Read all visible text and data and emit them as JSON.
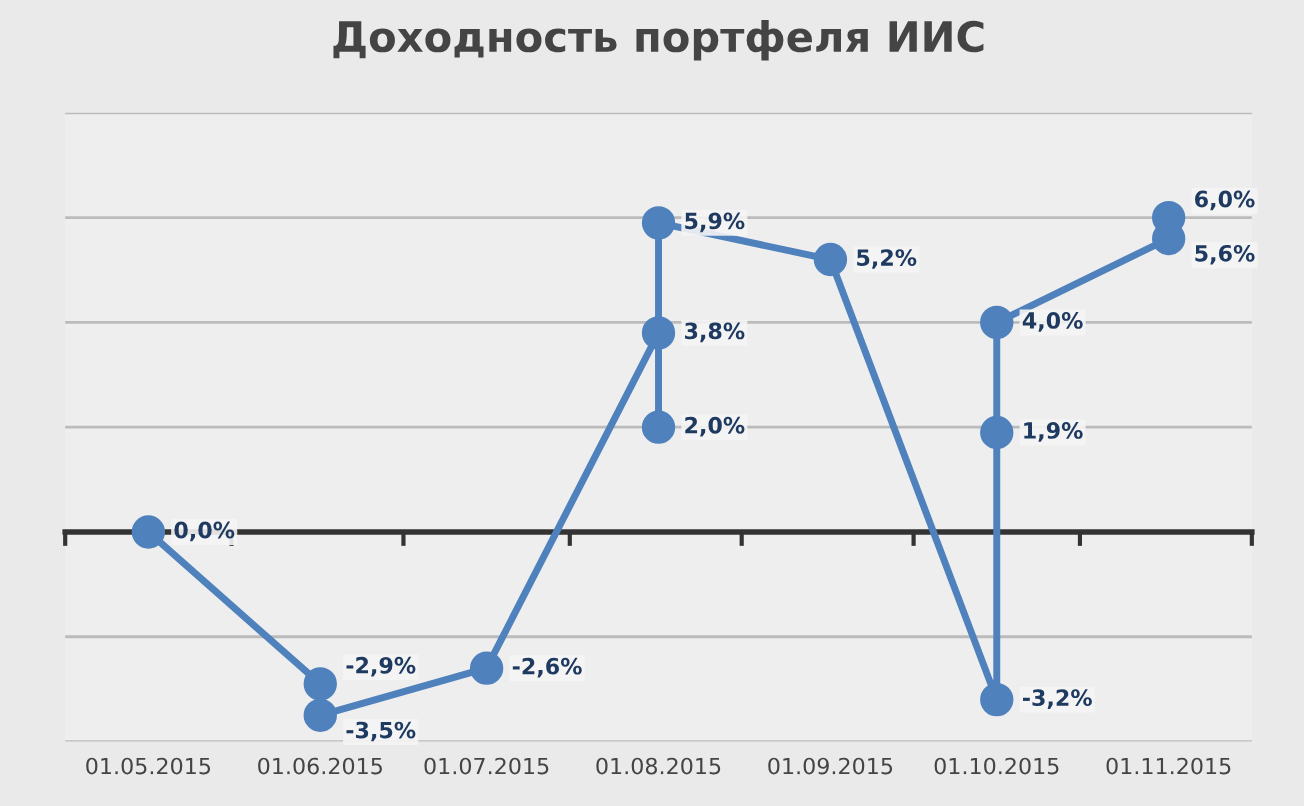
{
  "chart_data": {
    "type": "line",
    "title": "Доходность портфеля ИИС",
    "x": [
      "2015-05-01",
      "2015-06-01",
      "2015-06-01",
      "2015-07-01",
      "2015-08-01",
      "2015-08-01",
      "2015-08-01",
      "2015-09-01",
      "2015-10-01",
      "2015-10-01",
      "2015-10-01",
      "2015-11-01",
      "2015-11-01"
    ],
    "series": [
      {
        "color": "#4f81bd",
        "values": [
          0.0,
          -2.9,
          -3.5,
          -2.6,
          3.8,
          2.0,
          5.9,
          5.2,
          -3.2,
          1.9,
          4.0,
          5.6,
          6.0
        ],
        "value_labels": [
          "0,0%",
          "-2,9%",
          "-3,5%",
          "-2,6%",
          "3,8%",
          "2,0%",
          "5,9%",
          "5,2%",
          "-3,2%",
          "1,9%",
          "4,0%",
          "5,6%",
          "6,0%"
        ]
      }
    ],
    "xlim": [
      "2015-04-16",
      "2015-11-16"
    ],
    "xticks": [
      {
        "value": "2015-05-01",
        "label": "01.05.2015"
      },
      {
        "value": "2015-06-01",
        "label": "01.06.2015"
      },
      {
        "value": "2015-07-01",
        "label": "01.07.2015"
      },
      {
        "value": "2015-08-01",
        "label": "01.08.2015"
      },
      {
        "value": "2015-09-01",
        "label": "01.09.2015"
      },
      {
        "value": "2015-10-01",
        "label": "01.10.2015"
      },
      {
        "value": "2015-11-01",
        "label": "01.11.2015"
      },
      {
        "value": "2015-04-16",
        "label": null
      },
      {
        "value": "2015-05-16",
        "label": null
      },
      {
        "value": "2015-06-16",
        "label": null
      },
      {
        "value": "2015-07-16",
        "label": null
      },
      {
        "value": "2015-08-16",
        "label": null
      },
      {
        "value": "2015-09-16",
        "label": null
      },
      {
        "value": "2015-10-16",
        "label": null
      },
      {
        "value": "2015-11-16",
        "label": null
      }
    ],
    "ylim": [
      -4,
      8
    ],
    "yticks": [
      {
        "value": -4,
        "label": null
      },
      {
        "value": -2,
        "label": null
      },
      {
        "value": 0,
        "label": null
      },
      {
        "value": 2,
        "label": null
      },
      {
        "value": 4,
        "label": null
      },
      {
        "value": 6,
        "label": null
      },
      {
        "value": 8,
        "label": null
      }
    ],
    "grid": "y",
    "tick_labels": "x",
    "marker": "circle",
    "line_style": "solid",
    "legend": false
  }
}
